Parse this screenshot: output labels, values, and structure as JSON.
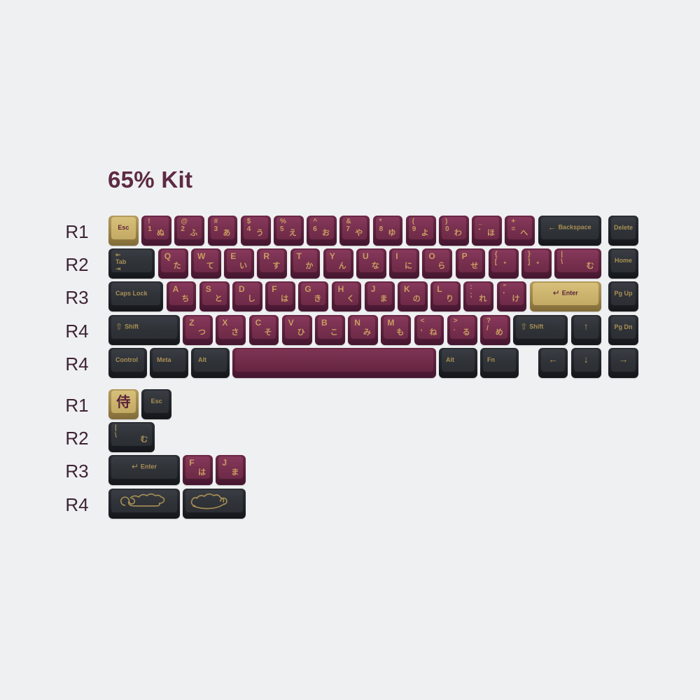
{
  "title": "65% Kit",
  "colors": {
    "background": "#EFF0F1",
    "title_text": "#5D2B43",
    "row_label_text": "#3E2433",
    "keycap_red_top": "#7A3150",
    "keycap_red_side": "#58203A",
    "keycap_dark_top": "#303439",
    "keycap_dark_side": "#202329",
    "keycap_gold_top": "#CDB56F",
    "keycap_gold_side": "#9C8449",
    "legend_gold": "#CA9D61",
    "legend_gold_on_dark": "#A98F55",
    "legend_red_on_gold": "#5B2139"
  },
  "icons": {
    "backspace-arrow": "←",
    "enter-arrow": "↵",
    "shift-arrow": "⇧",
    "tab-in": "⇤",
    "tab-out": "⇥",
    "arrow-up": "↑",
    "arrow-down": "↓",
    "arrow-left": "←",
    "arrow-right": "→",
    "samurai-kanji": "侍"
  },
  "keyboard": {
    "sections": [
      {
        "name": "main",
        "rows": [
          {
            "label": "R1",
            "keys": [
              {
                "n": "esc",
                "w": 1,
                "col": "gold",
                "c": "Esc",
                "center": true
              },
              {
                "n": "1",
                "w": 1,
                "col": "red",
                "tl": "!",
                "bl": "1",
                "br": "ぬ"
              },
              {
                "n": "2",
                "w": 1,
                "col": "red",
                "tl": "@",
                "bl": "2",
                "br": "ふ"
              },
              {
                "n": "3",
                "w": 1,
                "col": "red",
                "tl": "#",
                "bl": "3",
                "br": "あ"
              },
              {
                "n": "4",
                "w": 1,
                "col": "red",
                "tl": "$",
                "bl": "4",
                "br": "う"
              },
              {
                "n": "5",
                "w": 1,
                "col": "red",
                "tl": "%",
                "bl": "5",
                "br": "え"
              },
              {
                "n": "6",
                "w": 1,
                "col": "red",
                "tl": "^",
                "bl": "6",
                "br": "お"
              },
              {
                "n": "7",
                "w": 1,
                "col": "red",
                "tl": "&",
                "bl": "7",
                "br": "や"
              },
              {
                "n": "8",
                "w": 1,
                "col": "red",
                "tl": "*",
                "bl": "8",
                "br": "ゆ"
              },
              {
                "n": "9",
                "w": 1,
                "col": "red",
                "tl": "(",
                "bl": "9",
                "br": "よ"
              },
              {
                "n": "0",
                "w": 1,
                "col": "red",
                "tl": ")",
                "bl": "0",
                "br": "わ"
              },
              {
                "n": "minus",
                "w": 1,
                "col": "red",
                "tl": "_",
                "bl": "-",
                "br": "ほ"
              },
              {
                "n": "equals",
                "w": 1,
                "col": "red",
                "tl": "+",
                "bl": "=",
                "br": "へ"
              },
              {
                "n": "backspace",
                "w": 2,
                "col": "dark",
                "icon": "backspace",
                "label": "Backspace"
              },
              {
                "n": "delete",
                "w": 1,
                "col": "dark",
                "c": "Delete",
                "center": true,
                "gap": 0.13
              }
            ]
          },
          {
            "label": "R2",
            "keys": [
              {
                "n": "tab",
                "w": 1.5,
                "col": "dark",
                "icon": "tab",
                "label": "Tab"
              },
              {
                "n": "q",
                "w": 1,
                "col": "red",
                "tl": "Q",
                "br": "た"
              },
              {
                "n": "w",
                "w": 1,
                "col": "red",
                "tl": "W",
                "br": "て"
              },
              {
                "n": "e",
                "w": 1,
                "col": "red",
                "tl": "E",
                "br": "い"
              },
              {
                "n": "r",
                "w": 1,
                "col": "red",
                "tl": "R",
                "br": "す"
              },
              {
                "n": "t",
                "w": 1,
                "col": "red",
                "tl": "T",
                "br": "か"
              },
              {
                "n": "y",
                "w": 1,
                "col": "red",
                "tl": "Y",
                "br": "ん"
              },
              {
                "n": "u",
                "w": 1,
                "col": "red",
                "tl": "U",
                "br": "な"
              },
              {
                "n": "i",
                "w": 1,
                "col": "red",
                "tl": "I",
                "br": "に"
              },
              {
                "n": "o",
                "w": 1,
                "col": "red",
                "tl": "O",
                "br": "ら"
              },
              {
                "n": "p",
                "w": 1,
                "col": "red",
                "tl": "P",
                "br": "せ"
              },
              {
                "n": "bracket-left",
                "w": 1,
                "col": "red",
                "tl": "{",
                "bl": "[",
                "br": "゛"
              },
              {
                "n": "bracket-right",
                "w": 1,
                "col": "red",
                "tl": "}",
                "bl": "]",
                "br": "゜"
              },
              {
                "n": "backslash",
                "w": 1.5,
                "col": "red",
                "tl": "|",
                "bl": "\\",
                "br": "む"
              },
              {
                "n": "home",
                "w": 1,
                "col": "dark",
                "c": "Home",
                "center": true,
                "gap": 0.13
              }
            ]
          },
          {
            "label": "R3",
            "keys": [
              {
                "n": "caps-lock",
                "w": 1.75,
                "col": "dark",
                "c": "Caps Lock"
              },
              {
                "n": "a",
                "w": 1,
                "col": "red",
                "tl": "A",
                "br": "ち"
              },
              {
                "n": "s",
                "w": 1,
                "col": "red",
                "tl": "S",
                "br": "と"
              },
              {
                "n": "d",
                "w": 1,
                "col": "red",
                "tl": "D",
                "br": "し"
              },
              {
                "n": "f",
                "w": 1,
                "col": "red",
                "tl": "F",
                "br": "は"
              },
              {
                "n": "g",
                "w": 1,
                "col": "red",
                "tl": "G",
                "br": "き"
              },
              {
                "n": "h",
                "w": 1,
                "col": "red",
                "tl": "H",
                "br": "く"
              },
              {
                "n": "j",
                "w": 1,
                "col": "red",
                "tl": "J",
                "br": "ま"
              },
              {
                "n": "k",
                "w": 1,
                "col": "red",
                "tl": "K",
                "br": "の"
              },
              {
                "n": "l",
                "w": 1,
                "col": "red",
                "tl": "L",
                "br": "り"
              },
              {
                "n": "semicolon",
                "w": 1,
                "col": "red",
                "tl": ":",
                "bl": ";",
                "br": "れ"
              },
              {
                "n": "quote",
                "w": 1,
                "col": "red",
                "tl": "\"",
                "bl": "'",
                "br": "け"
              },
              {
                "n": "enter",
                "w": 2.25,
                "col": "gold",
                "icon": "enter",
                "label": "Enter"
              },
              {
                "n": "pg-up",
                "w": 1,
                "col": "dark",
                "c": "Pg Up",
                "center": true,
                "gap": 0.13
              }
            ]
          },
          {
            "label": "R4",
            "keys": [
              {
                "n": "shift-left",
                "w": 2.25,
                "col": "dark",
                "icon": "shift",
                "label": "Shift"
              },
              {
                "n": "z",
                "w": 1,
                "col": "red",
                "tl": "Z",
                "br": "つ"
              },
              {
                "n": "x",
                "w": 1,
                "col": "red",
                "tl": "X",
                "br": "さ"
              },
              {
                "n": "c",
                "w": 1,
                "col": "red",
                "tl": "C",
                "br": "そ"
              },
              {
                "n": "v",
                "w": 1,
                "col": "red",
                "tl": "V",
                "br": "ひ"
              },
              {
                "n": "b",
                "w": 1,
                "col": "red",
                "tl": "B",
                "br": "こ"
              },
              {
                "n": "n",
                "w": 1,
                "col": "red",
                "tl": "N",
                "br": "み"
              },
              {
                "n": "m",
                "w": 1,
                "col": "red",
                "tl": "M",
                "br": "も"
              },
              {
                "n": "comma",
                "w": 1,
                "col": "red",
                "tl": "<",
                "bl": ",",
                "br": "ね"
              },
              {
                "n": "period",
                "w": 1,
                "col": "red",
                "tl": ">",
                "bl": ".",
                "br": "る"
              },
              {
                "n": "slash",
                "w": 1,
                "col": "red",
                "tl": "?",
                "bl": "/",
                "br": "め"
              },
              {
                "n": "shift-right",
                "w": 1.75,
                "col": "dark",
                "icon": "shift",
                "label": "Shift"
              },
              {
                "n": "arrow-up",
                "w": 1,
                "col": "dark",
                "glyph": "arrow-up"
              },
              {
                "n": "pg-dn",
                "w": 1,
                "col": "dark",
                "c": "Pg Dn",
                "center": true,
                "gap": 0.13
              }
            ]
          },
          {
            "label": "R4",
            "keys": [
              {
                "n": "control",
                "w": 1.25,
                "col": "dark",
                "c": "Control"
              },
              {
                "n": "meta",
                "w": 1.25,
                "col": "dark",
                "c": "Meta"
              },
              {
                "n": "alt-left",
                "w": 1.25,
                "col": "dark",
                "c": "Alt"
              },
              {
                "n": "space",
                "w": 6.25,
                "col": "red-space"
              },
              {
                "n": "alt-right",
                "w": 1.25,
                "col": "dark",
                "c": "Alt"
              },
              {
                "n": "fn",
                "w": 1.25,
                "col": "dark",
                "c": "Fn"
              },
              {
                "n": "arrow-left",
                "w": 1,
                "col": "dark",
                "glyph": "arrow-left",
                "gap": 0.5
              },
              {
                "n": "arrow-down",
                "w": 1,
                "col": "dark",
                "glyph": "arrow-down"
              },
              {
                "n": "arrow-right",
                "w": 1,
                "col": "dark",
                "glyph": "arrow-right",
                "gap": 0.13
              }
            ]
          }
        ]
      },
      {
        "name": "extras",
        "rows": [
          {
            "label": "R1",
            "keys": [
              {
                "n": "samurai",
                "w": 1,
                "col": "gold",
                "kanji": "samurai-kanji"
              },
              {
                "n": "esc-extra",
                "w": 1,
                "col": "dark",
                "c": "Esc",
                "center": true
              }
            ]
          },
          {
            "label": "R2",
            "keys": [
              {
                "n": "backslash-extra",
                "w": 1.5,
                "col": "dark",
                "tl": "|",
                "bl": "\\",
                "br": "む"
              }
            ]
          },
          {
            "label": "R3",
            "keys": [
              {
                "n": "enter-extra",
                "w": 2.25,
                "col": "dark",
                "icon": "enter",
                "label": "Enter"
              },
              {
                "n": "f-extra",
                "w": 1,
                "col": "red",
                "tl": "F",
                "br": "は"
              },
              {
                "n": "j-extra",
                "w": 1,
                "col": "red",
                "tl": "J",
                "br": "ま"
              }
            ]
          },
          {
            "label": "R4",
            "keys": [
              {
                "n": "cloud-1",
                "w": 2.25,
                "col": "dark",
                "icon": "cloud1"
              },
              {
                "n": "cloud-2",
                "w": 2,
                "col": "dark",
                "icon": "cloud2"
              }
            ]
          }
        ]
      }
    ]
  }
}
